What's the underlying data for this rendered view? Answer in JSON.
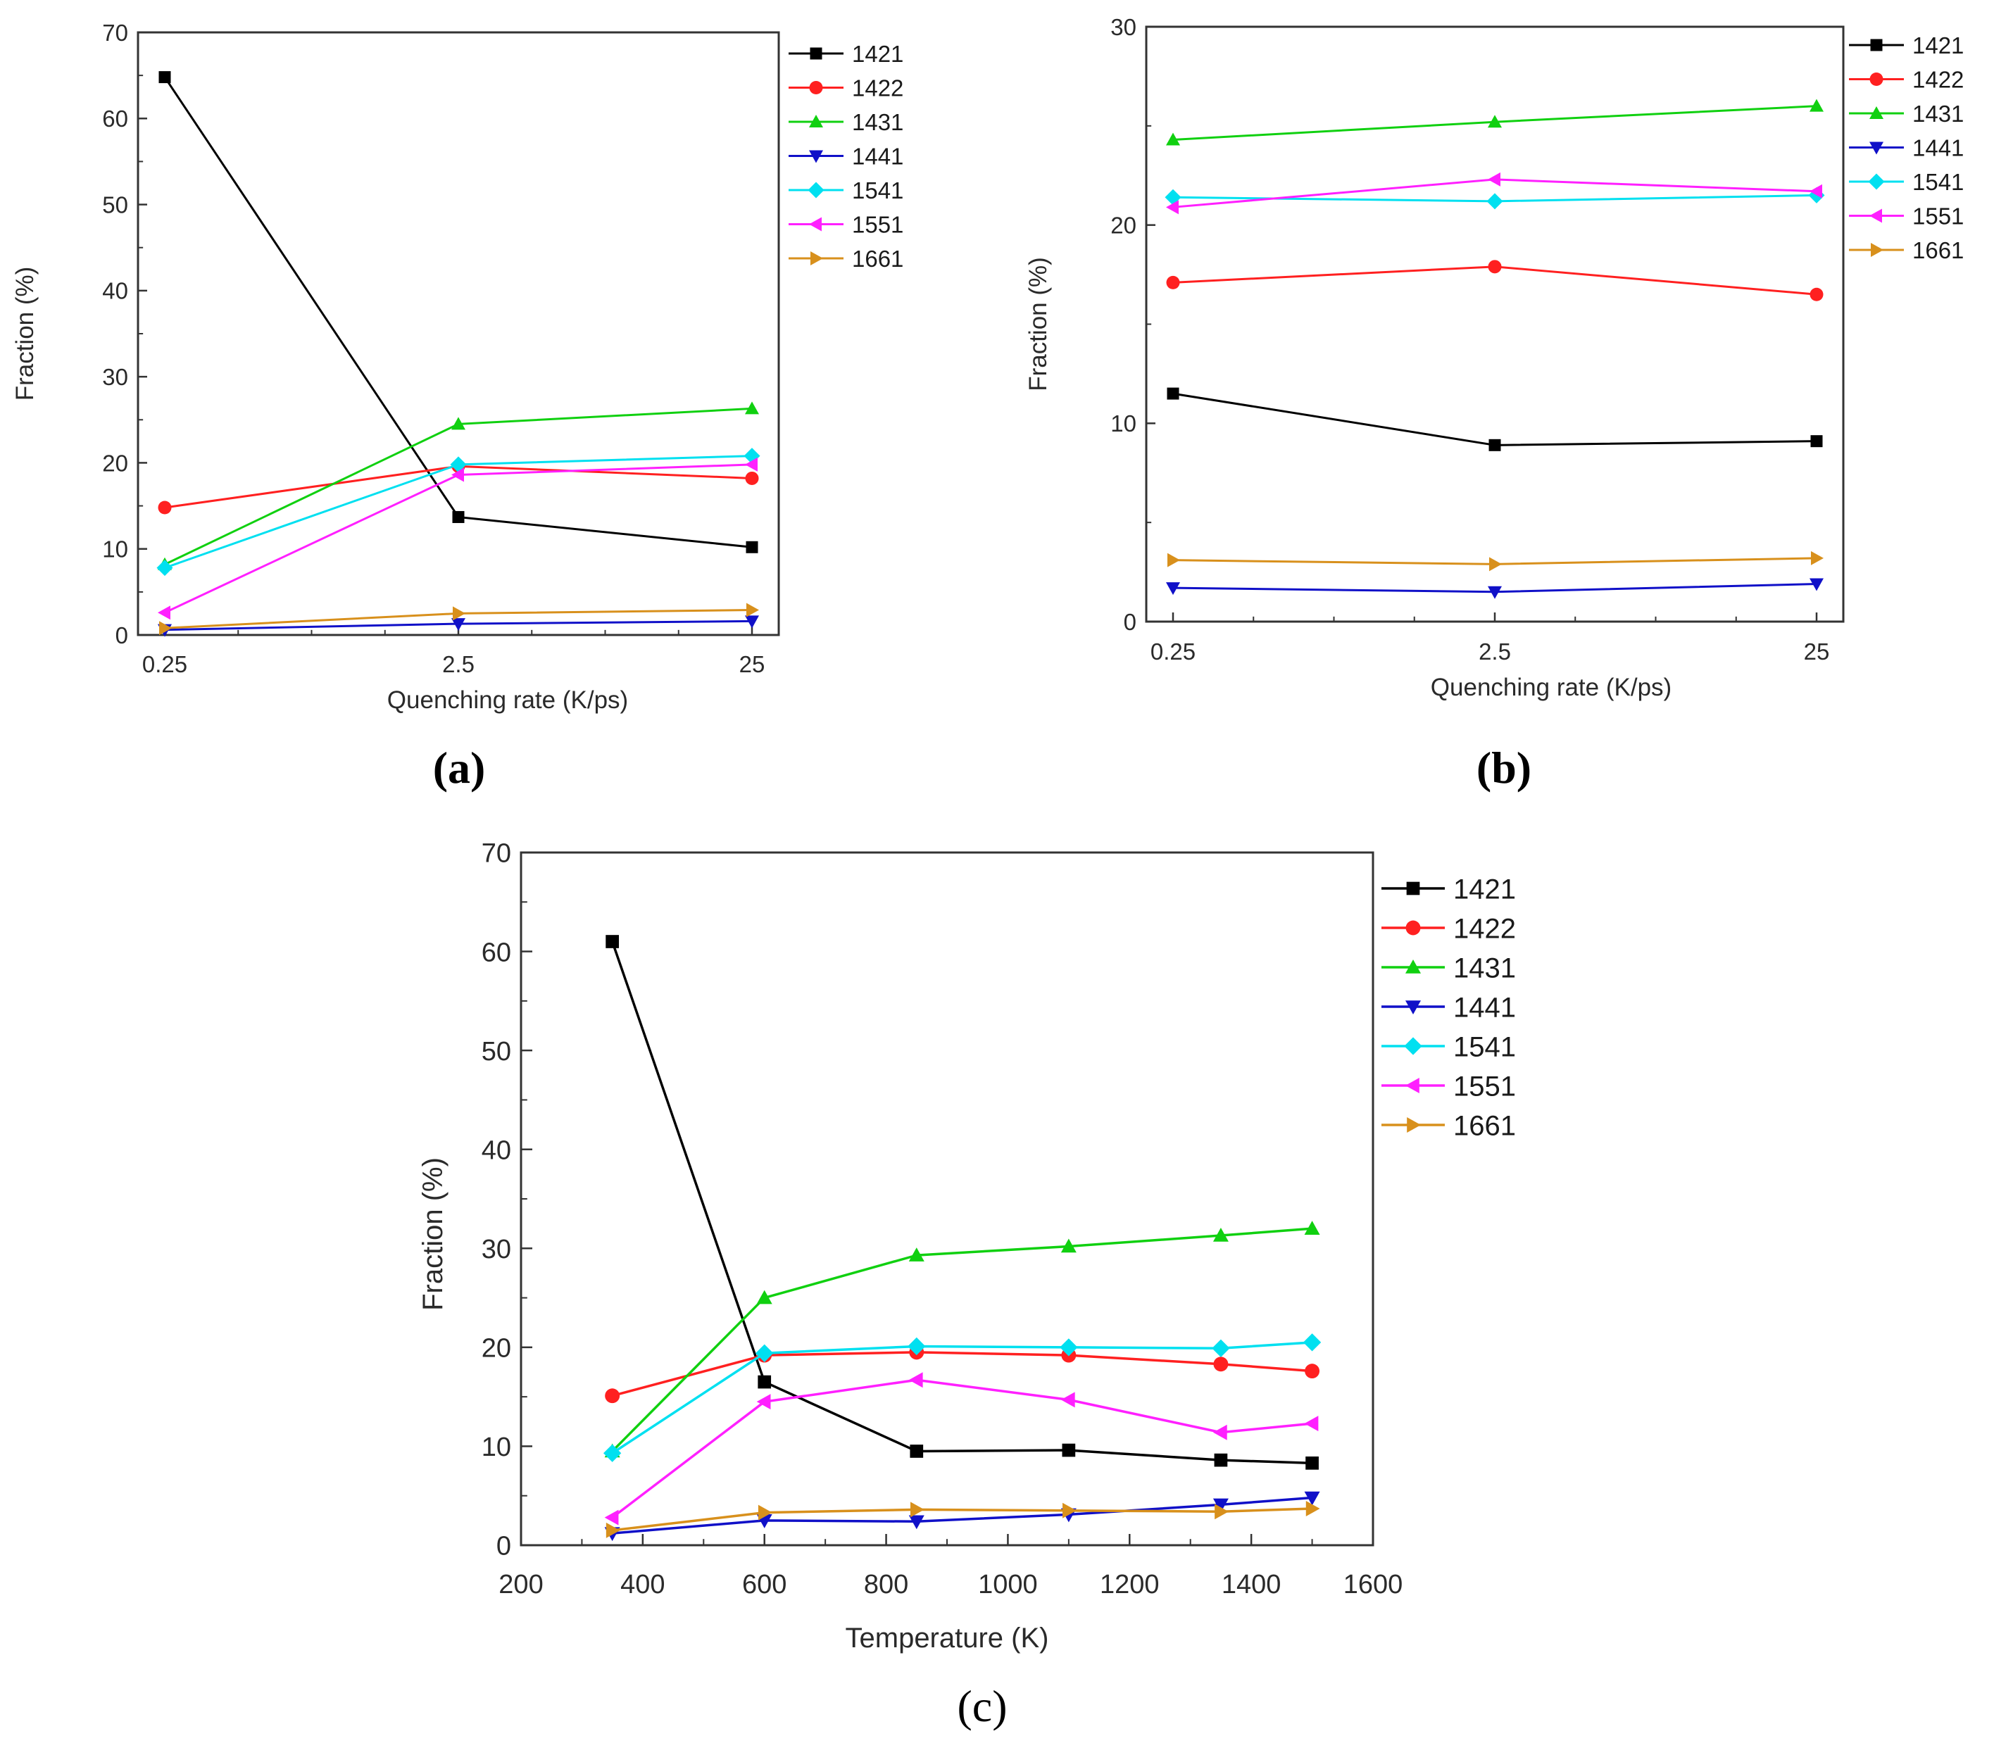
{
  "chart_data": [
    {
      "panel": "a",
      "type": "line",
      "x_scale": "categorical",
      "categories": [
        "0.25",
        "2.5",
        "25"
      ],
      "xlabel": "Quenching rate (K/ps)",
      "ylabel": "Fraction (%)",
      "ylim": [
        0,
        70
      ],
      "yticks": [
        0,
        10,
        20,
        30,
        40,
        50,
        60,
        70
      ],
      "series": [
        {
          "name": "1421",
          "color": "#000000",
          "marker": "square",
          "values": [
            64.8,
            13.7,
            10.2
          ]
        },
        {
          "name": "1422",
          "color": "#ff2020",
          "marker": "circle",
          "values": [
            14.8,
            19.6,
            18.2
          ]
        },
        {
          "name": "1431",
          "color": "#10d010",
          "marker": "triangle-up",
          "values": [
            8.2,
            24.5,
            26.3
          ]
        },
        {
          "name": "1441",
          "color": "#1010c8",
          "marker": "triangle-down",
          "values": [
            0.6,
            1.3,
            1.6
          ]
        },
        {
          "name": "1541",
          "color": "#00e0f0",
          "marker": "diamond",
          "values": [
            7.8,
            19.8,
            20.8
          ]
        },
        {
          "name": "1551",
          "color": "#ff20ff",
          "marker": "triangle-left",
          "values": [
            2.6,
            18.6,
            19.8
          ]
        },
        {
          "name": "1661",
          "color": "#d8901c",
          "marker": "triangle-right",
          "values": [
            0.8,
            2.5,
            2.9
          ]
        }
      ],
      "caption": "(a)"
    },
    {
      "panel": "b",
      "type": "line",
      "x_scale": "categorical",
      "categories": [
        "0.25",
        "2.5",
        "25"
      ],
      "xlabel": "Quenching rate (K/ps)",
      "ylabel": "Fraction (%)",
      "ylim": [
        0,
        30
      ],
      "yticks": [
        0,
        10,
        20,
        30
      ],
      "series": [
        {
          "name": "1421",
          "color": "#000000",
          "marker": "square",
          "values": [
            11.5,
            8.9,
            9.1
          ]
        },
        {
          "name": "1422",
          "color": "#ff2020",
          "marker": "circle",
          "values": [
            17.1,
            17.9,
            16.5
          ]
        },
        {
          "name": "1431",
          "color": "#10d010",
          "marker": "triangle-up",
          "values": [
            24.3,
            25.2,
            26.0
          ]
        },
        {
          "name": "1441",
          "color": "#1010c8",
          "marker": "triangle-down",
          "values": [
            1.7,
            1.5,
            1.9
          ]
        },
        {
          "name": "1541",
          "color": "#00e0f0",
          "marker": "diamond",
          "values": [
            21.4,
            21.2,
            21.5
          ]
        },
        {
          "name": "1551",
          "color": "#ff20ff",
          "marker": "triangle-left",
          "values": [
            20.9,
            22.3,
            21.7
          ]
        },
        {
          "name": "1661",
          "color": "#d8901c",
          "marker": "triangle-right",
          "values": [
            3.1,
            2.9,
            3.2
          ]
        }
      ],
      "caption": "(b)"
    },
    {
      "panel": "c",
      "type": "line",
      "x_scale": "linear",
      "x": [
        350,
        600,
        850,
        1100,
        1350,
        1500
      ],
      "xlim": [
        200,
        1600
      ],
      "xticks": [
        200,
        400,
        600,
        800,
        1000,
        1200,
        1400,
        1600
      ],
      "xlabel": "Temperature (K)",
      "ylabel": "Fraction (%)",
      "ylim": [
        0,
        70
      ],
      "yticks": [
        0,
        10,
        20,
        30,
        40,
        50,
        60,
        70
      ],
      "series": [
        {
          "name": "1421",
          "color": "#000000",
          "marker": "square",
          "values": [
            61.0,
            16.5,
            9.5,
            9.6,
            8.6,
            8.3
          ]
        },
        {
          "name": "1422",
          "color": "#ff2020",
          "marker": "circle",
          "values": [
            15.1,
            19.2,
            19.5,
            19.2,
            18.3,
            17.6
          ]
        },
        {
          "name": "1431",
          "color": "#10d010",
          "marker": "triangle-up",
          "values": [
            9.5,
            25.0,
            29.3,
            30.2,
            31.3,
            32.0
          ]
        },
        {
          "name": "1441",
          "color": "#1010c8",
          "marker": "triangle-down",
          "values": [
            1.2,
            2.5,
            2.4,
            3.1,
            4.1,
            4.8
          ]
        },
        {
          "name": "1541",
          "color": "#00e0f0",
          "marker": "diamond",
          "values": [
            9.3,
            19.4,
            20.1,
            20.0,
            19.9,
            20.5
          ]
        },
        {
          "name": "1551",
          "color": "#ff20ff",
          "marker": "triangle-left",
          "values": [
            2.8,
            14.5,
            16.7,
            14.7,
            11.4,
            12.3
          ]
        },
        {
          "name": "1661",
          "color": "#d8901c",
          "marker": "triangle-right",
          "values": [
            1.5,
            3.3,
            3.6,
            3.5,
            3.4,
            3.7
          ]
        }
      ],
      "caption": "(c)"
    }
  ]
}
